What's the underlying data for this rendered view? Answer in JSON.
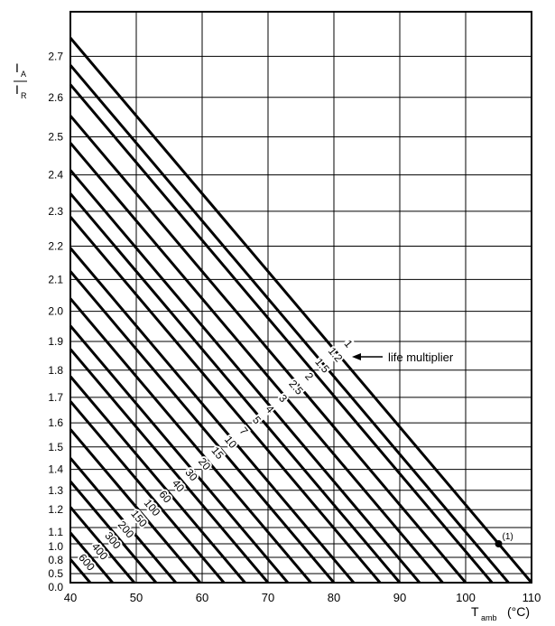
{
  "chart_data": {
    "type": "line",
    "title": "",
    "ylabel": {
      "numerator": "I",
      "numerator_sub": "A",
      "denominator": "I",
      "denominator_sub": "R"
    },
    "xlabel": {
      "main": "T",
      "sub": "amb",
      "unit": "(°C)"
    },
    "xlim": [
      40,
      110
    ],
    "ylim": [
      0.0,
      2.8
    ],
    "x_ticks": [
      40,
      50,
      60,
      70,
      80,
      90,
      100,
      110
    ],
    "y_ticks": [
      "0.0",
      "0.5",
      "0.8",
      "1.0",
      "1.1",
      "1.2",
      "1.3",
      "1.4",
      "1.5",
      "1.6",
      "1.7",
      "1.8",
      "1.9",
      "2.0",
      "2.1",
      "2.2",
      "2.3",
      "2.4",
      "2.5",
      "2.6",
      "2.7"
    ],
    "y_scale": "quadratic above 1.0 (IA/IR squared), compressed below 1.0",
    "grid": true,
    "series_label_title": "life multiplier",
    "series": [
      {
        "name": "1",
        "x_at_zero": 110,
        "y_at_40": 2.75
      },
      {
        "name": "1.2",
        "x_at_zero": 106.5
      },
      {
        "name": "1.5",
        "x_at_zero": 104
      },
      {
        "name": "2",
        "x_at_zero": 100
      },
      {
        "name": "2.5",
        "x_at_zero": 96.5
      },
      {
        "name": "3",
        "x_at_zero": 93
      },
      {
        "name": "4",
        "x_at_zero": 90
      },
      {
        "name": "5",
        "x_at_zero": 87
      },
      {
        "name": "7",
        "x_at_zero": 83
      },
      {
        "name": "10",
        "x_at_zero": 80
      },
      {
        "name": "15",
        "x_at_zero": 76.5
      },
      {
        "name": "20",
        "x_at_zero": 73
      },
      {
        "name": "30",
        "x_at_zero": 70
      },
      {
        "name": "40",
        "x_at_zero": 66.5
      },
      {
        "name": "60",
        "x_at_zero": 63.3
      },
      {
        "name": "100",
        "x_at_zero": 59.7
      },
      {
        "name": "150",
        "x_at_zero": 56
      },
      {
        "name": "200",
        "x_at_zero": 53
      },
      {
        "name": "300",
        "x_at_zero": 49.7
      },
      {
        "name": "400",
        "x_at_zero": 46.4
      },
      {
        "name": "600",
        "x_at_zero": 43,
        "y_at_40": 0.8
      }
    ],
    "annotations": [
      {
        "label": "(1)",
        "x": 105,
        "y": 1.0
      }
    ]
  }
}
